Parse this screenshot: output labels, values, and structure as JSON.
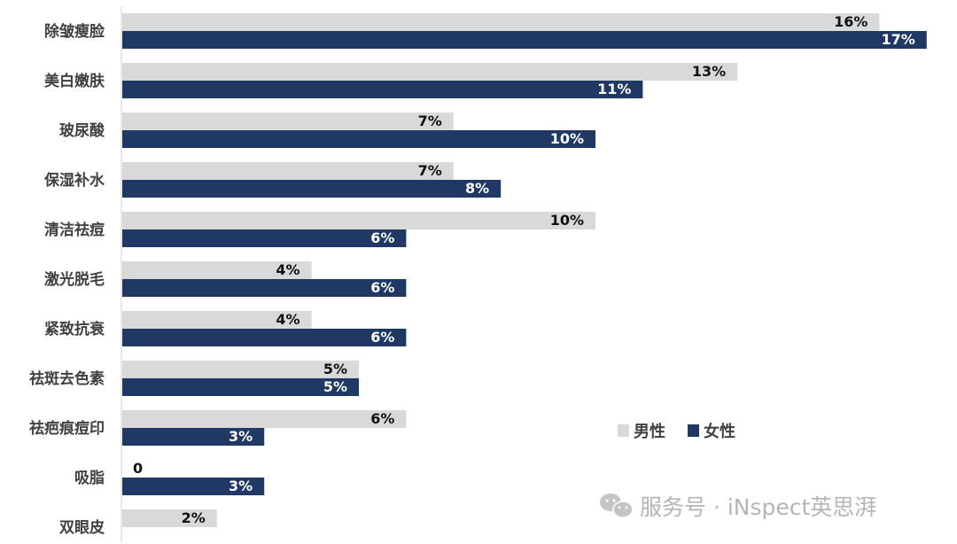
{
  "chart_data": {
    "type": "bar",
    "orientation": "horizontal",
    "categories": [
      "除皱瘦脸",
      "美白嫩肤",
      "玻尿酸",
      "保湿补水",
      "清洁祛痘",
      "激光脱毛",
      "紧致抗衰",
      "祛斑去色素",
      "祛疤痕痘印",
      "吸脂",
      "双眼皮"
    ],
    "series": [
      {
        "name": "男性",
        "color": "#d9d9d9",
        "label_color": "#111111",
        "values": [
          16,
          13,
          7,
          7,
          10,
          4,
          4,
          5,
          6,
          0,
          2
        ],
        "labels": [
          "16%",
          "13%",
          "7%",
          "7%",
          "10%",
          "4%",
          "4%",
          "5%",
          "6%",
          "0",
          "2%"
        ]
      },
      {
        "name": "女性",
        "color": "#1f3864",
        "label_color": "#ffffff",
        "values": [
          17,
          11,
          10,
          8,
          6,
          6,
          6,
          5,
          3,
          3,
          null
        ],
        "labels": [
          "17%",
          "11%",
          "10%",
          "8%",
          "6%",
          "6%",
          "6%",
          "5%",
          "3%",
          "3%",
          ""
        ]
      }
    ],
    "xlim": [
      0,
      17
    ],
    "legend": "middle-right",
    "grid": false
  },
  "watermark": {
    "text": "服务号 · iNspect英思湃",
    "icon": "wechat-icon"
  }
}
